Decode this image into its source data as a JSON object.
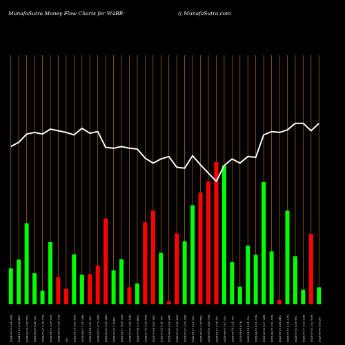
{
  "header": {
    "title": "MunafaSutra  Money Flow  Charts for W4BB",
    "site": "(( MunafaSutra.com"
  },
  "chart_data": {
    "type": "bar",
    "title": "MunafaSutra  Money Flow  Charts for W4BB",
    "colors": {
      "up": "#00ff00",
      "down": "#ff0000",
      "line": "#ffffff",
      "grid": "#b46e1e"
    },
    "bars": [
      {
        "label": "2024-09-10 0.64 -96%",
        "value": 7.4,
        "dir": "up"
      },
      {
        "label": "2024-12-03 2.66 42%",
        "value": 9.2,
        "dir": "up"
      },
      {
        "label": "2025-02-04 1.86 77%",
        "value": 16.7,
        "dir": "up"
      },
      {
        "label": "2025-06-05 0.48 -3%",
        "value": 6.4,
        "dir": "up"
      },
      {
        "label": "2025-07-03 2.14 -27%",
        "value": 2.8,
        "dir": "up"
      },
      {
        "label": "2025-04-11 1.39 -49%",
        "value": 12.8,
        "dir": "up"
      },
      {
        "label": "2025-04-09 1.26 -10%",
        "value": 5.6,
        "dir": "down"
      },
      {
        "label": "0%",
        "value": 3.2,
        "dir": "down"
      },
      {
        "label": "2025-03-31 0.65 -45%",
        "value": 10.3,
        "dir": "up"
      },
      {
        "label": "2025-04-07 1.21 -24%",
        "value": 6.1,
        "dir": "up"
      },
      {
        "label": "2025-04-04 1.46 -4%",
        "value": 6.2,
        "dir": "down"
      },
      {
        "label": "2025-03-27 0.79 -34%",
        "value": 8.0,
        "dir": "down"
      },
      {
        "label": "2025-06-25 0.62 -44%",
        "value": 17.7,
        "dir": "down"
      },
      {
        "label": "2025-07-22 1.10 6%",
        "value": 7.0,
        "dir": "up"
      },
      {
        "label": "2025-06-17 0.55 -33%",
        "value": 9.3,
        "dir": "up"
      },
      {
        "label": "2025-07-03 1.86 -44%",
        "value": 3.5,
        "dir": "down"
      },
      {
        "label": "2025-07-04 1.37 86%",
        "value": 4.3,
        "dir": "up"
      },
      {
        "label": "2025-07-18 1.26 -40%",
        "value": 16.9,
        "dir": "down"
      },
      {
        "label": "2025-07-04 0.83 13%",
        "value": 19.3,
        "dir": "down"
      },
      {
        "label": "2025-07-21 1.01 -8%",
        "value": 10.6,
        "dir": "up"
      },
      {
        "label": "2025-08-06 0.49 -44%",
        "value": 0.6,
        "dir": "down"
      },
      {
        "label": "2025-07-29 2.06 -45%",
        "value": 14.6,
        "dir": "down"
      },
      {
        "label": "2025-07-07 1.43 -69%",
        "value": 13.0,
        "dir": "up"
      },
      {
        "label": "2025-06-17 1.00 -3%",
        "value": 20.4,
        "dir": "up"
      },
      {
        "label": "2025-06-19 1.30 76%",
        "value": 23.0,
        "dir": "down"
      },
      {
        "label": "2025-05-16 1.80 -18%",
        "value": 25.3,
        "dir": "down"
      },
      {
        "label": "2025-05-27 2.34 -4%",
        "value": 29.3,
        "dir": "down"
      },
      {
        "label": "2025-06-03 1.07 -2%",
        "value": 28.6,
        "dir": "up"
      },
      {
        "label": "2025-03-14 1.21 -6%",
        "value": 8.7,
        "dir": "up"
      },
      {
        "label": "2025-04-04 6.2%",
        "value": 3.6,
        "dir": "up"
      },
      {
        "label": "2025-04-14 0.91 -1%",
        "value": 12.1,
        "dir": "up"
      },
      {
        "label": "2025-04-25 0.92 -19%",
        "value": 10.2,
        "dir": "up"
      },
      {
        "label": "2025-05-08 1.27 -54%",
        "value": 25.2,
        "dir": "up"
      },
      {
        "label": "2025-04-15 1.52 -52%",
        "value": 10.9,
        "dir": "up"
      },
      {
        "label": "2025-06-21 0.81 24%",
        "value": 0.9,
        "dir": "down"
      },
      {
        "label": "2025-07-07 2.16 -21%",
        "value": 19.3,
        "dir": "up"
      },
      {
        "label": "2025-07-15 0.58 -4%",
        "value": 9.9,
        "dir": "up"
      },
      {
        "label": "2025-07-17 1.53 -22%",
        "value": 3.0,
        "dir": "up"
      },
      {
        "label": "2025-07-25 1.02 -62%",
        "value": 14.5,
        "dir": "down"
      },
      {
        "label": "2025-08-06 0.69 2%",
        "value": 3.5,
        "dir": "up"
      }
    ],
    "price": [
      39.0,
      39.5,
      40.5,
      40.7,
      40.5,
      41.1,
      40.9,
      40.7,
      40.4,
      41.2,
      40.6,
      40.8,
      38.9,
      38.8,
      39.0,
      38.8,
      38.7,
      37.6,
      37.0,
      37.5,
      37.8,
      36.5,
      36.4,
      37.9,
      36.8,
      35.8,
      34.8,
      36.7,
      37.5,
      37.0,
      37.8,
      37.7,
      40.4,
      40.8,
      40.7,
      41.0,
      41.8,
      41.8,
      40.9,
      41.8
    ],
    "ylim_bars": [
      0,
      30
    ],
    "ylim_price": [
      20,
      50
    ],
    "grid": "vertical"
  }
}
